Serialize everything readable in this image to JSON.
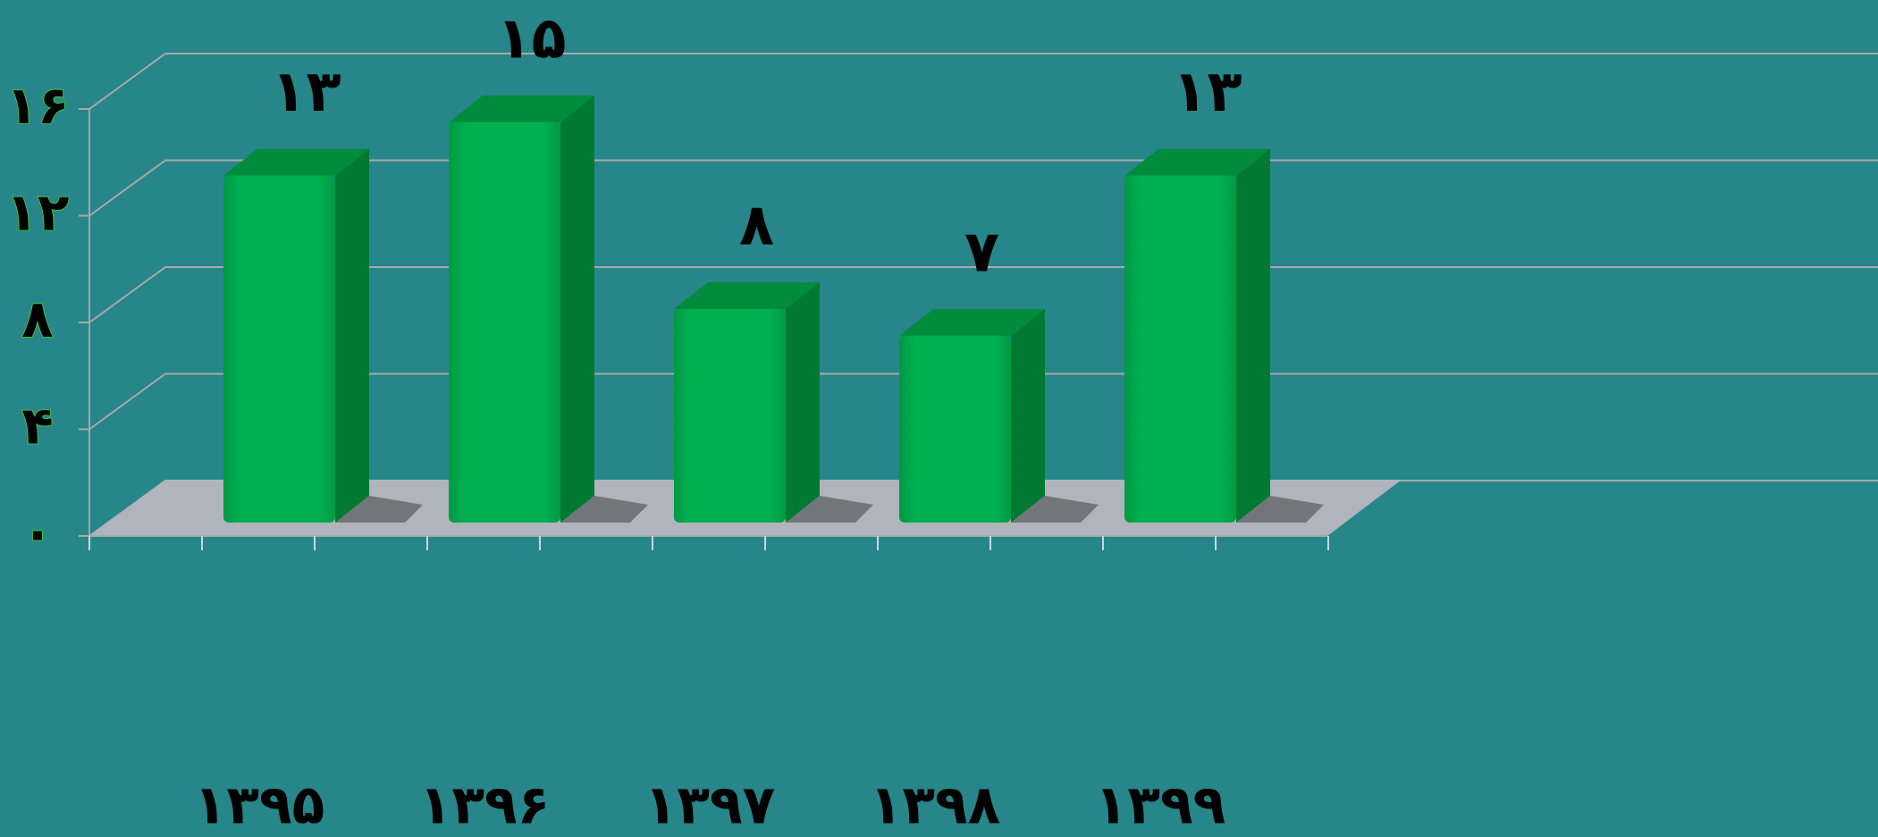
{
  "chart_data": {
    "type": "bar3d",
    "categories": [
      "۱۳۹۵",
      "۱۳۹۶",
      "۱۳۹۷",
      "۱۳۹۸",
      "۱۳۹۹"
    ],
    "values": [
      13,
      15,
      8,
      7,
      13
    ],
    "value_labels": [
      "۱۳",
      "۱۵",
      "۸",
      "۷",
      "۱۳"
    ],
    "color": "#00b050",
    "ylim": [
      0,
      16
    ],
    "yticks": [
      {
        "value": 0,
        "label": "۰"
      },
      {
        "value": 4,
        "label": "۴"
      },
      {
        "value": 8,
        "label": "۸"
      },
      {
        "value": 12,
        "label": "۱۲"
      },
      {
        "value": 16,
        "label": "۱۶"
      }
    ],
    "grid": true
  }
}
